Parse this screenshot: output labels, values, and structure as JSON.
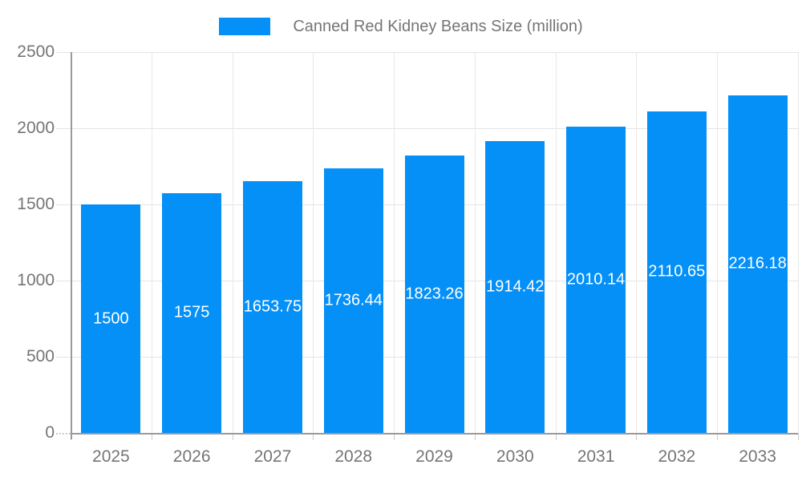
{
  "legend": {
    "label": "Canned Red Kidney Beans Size (million)"
  },
  "colors": {
    "bar": "#0590f8",
    "bar_label_text": "#ffffff",
    "axis_text": "#757575",
    "legend_text": "#757575",
    "grid": "#e5e5e5",
    "axis_line": "#9a9a9a",
    "background": "#ffffff"
  },
  "chart_data": {
    "type": "bar",
    "title": "Canned Red Kidney Beans Size (million)",
    "categories": [
      "2025",
      "2026",
      "2027",
      "2028",
      "2029",
      "2030",
      "2031",
      "2032",
      "2033"
    ],
    "values": [
      1500,
      1575,
      1653.75,
      1736.44,
      1823.26,
      1914.42,
      2010.14,
      2110.65,
      2216.18
    ],
    "bar_labels": [
      "1500",
      "1575",
      "1653.75",
      "1736.44",
      "1823.26",
      "1914.42",
      "2010.14",
      "2110.65",
      "2216.18"
    ],
    "series": [
      {
        "name": "Canned Red Kidney Beans Size (million)",
        "values": [
          1500,
          1575,
          1653.75,
          1736.44,
          1823.26,
          1914.42,
          2010.14,
          2110.65,
          2216.18
        ]
      }
    ],
    "xlabel": "",
    "ylabel": "",
    "ylim": [
      0,
      2500
    ],
    "yticks": [
      0,
      500,
      1000,
      1500,
      2000,
      2500
    ],
    "grid": true,
    "legend_position": "top",
    "value_label_position": "center-inside"
  }
}
